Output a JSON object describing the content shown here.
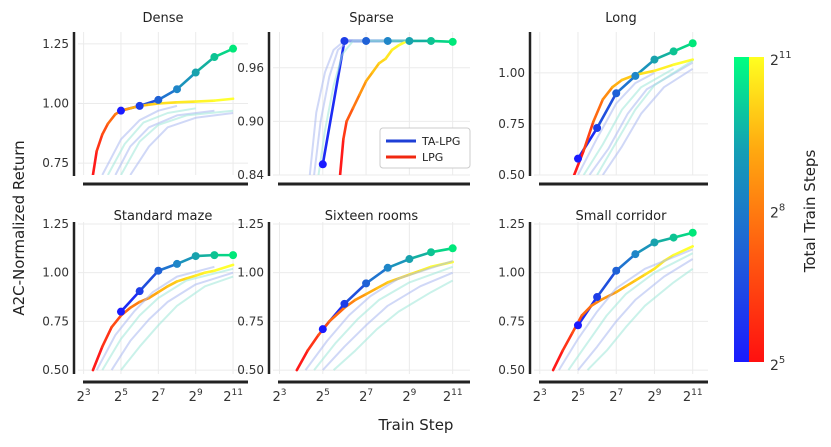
{
  "figure": {
    "ylabel": "A2C-Normalized Return",
    "xlabel": "Train Step",
    "colorbar_label": "Total Train Steps",
    "colorbar_ticks": [
      {
        "base": "2",
        "exp": "11",
        "value": 11
      },
      {
        "base": "2",
        "exp": "8",
        "value": 8
      },
      {
        "base": "2",
        "exp": "5",
        "value": 5
      }
    ],
    "colors": {
      "ta_lpg_gradient": [
        "#1a1aff",
        "#1f4fdd",
        "#1f86c8",
        "#14b0a0",
        "#00e87a"
      ],
      "lpg_gradient": [
        "#ff1a1a",
        "#ff6a10",
        "#ffae10",
        "#ffe020",
        "#ffff30"
      ],
      "ta_lpg_legend": "#1e3fd6",
      "lpg_legend": "#f02810"
    },
    "legend": [
      {
        "name": "TA-LPG",
        "color": "#1e3fd6"
      },
      {
        "name": "LPG",
        "color": "#f02810"
      }
    ]
  },
  "chart_data": [
    {
      "type": "line",
      "title": "Dense",
      "xlim": [
        2.7,
        11.8
      ],
      "ylim": [
        0.7,
        1.3
      ],
      "xticks": [],
      "yticks": [
        0.75,
        1.0,
        1.25
      ],
      "series": [
        {
          "name": "TA-LPG",
          "style": "markers",
          "x": [
            5,
            6,
            7,
            8,
            9,
            10,
            11
          ],
          "y": [
            0.97,
            0.99,
            1.015,
            1.06,
            1.13,
            1.195,
            1.23
          ]
        },
        {
          "name": "LPG",
          "style": "gradient",
          "x": [
            3.5,
            3.7,
            4.0,
            4.3,
            4.7,
            5,
            5.5,
            6,
            6.5,
            7,
            8,
            9,
            10,
            11
          ],
          "y": [
            0.7,
            0.8,
            0.87,
            0.915,
            0.955,
            0.97,
            0.98,
            0.99,
            0.995,
            1.0,
            1.005,
            1.008,
            1.012,
            1.02
          ]
        },
        {
          "name": "faint",
          "style": "faint",
          "lines": [
            {
              "x": [
                4,
                5,
                6,
                7,
                8
              ],
              "y": [
                0.7,
                0.85,
                0.93,
                0.97,
                0.99
              ]
            },
            {
              "x": [
                4.3,
                5.2,
                6.2,
                7.5,
                9
              ],
              "y": [
                0.7,
                0.83,
                0.92,
                0.96,
                0.98
              ]
            },
            {
              "x": [
                4.7,
                5.5,
                6.5,
                8,
                10
              ],
              "y": [
                0.7,
                0.82,
                0.9,
                0.95,
                0.97
              ]
            },
            {
              "x": [
                5,
                6,
                7,
                8.5,
                11
              ],
              "y": [
                0.7,
                0.84,
                0.91,
                0.95,
                0.97
              ]
            },
            {
              "x": [
                5.5,
                6.5,
                7.5,
                9,
                11
              ],
              "y": [
                0.7,
                0.82,
                0.9,
                0.94,
                0.96
              ]
            }
          ]
        }
      ]
    },
    {
      "type": "line",
      "title": "Sparse",
      "xlim": [
        2.7,
        11.8
      ],
      "ylim": [
        0.84,
        1.0
      ],
      "xticks": [],
      "yticks": [
        0.84,
        0.9,
        0.96
      ],
      "series": [
        {
          "name": "TA-LPG",
          "style": "markers",
          "x": [
            5,
            6,
            7,
            8,
            9,
            10,
            11
          ],
          "y": [
            0.852,
            0.99,
            0.99,
            0.99,
            0.99,
            0.99,
            0.989
          ]
        },
        {
          "name": "LPG",
          "style": "gradient",
          "x": [
            5.8,
            5.95,
            6.1,
            6.4,
            6.7,
            7.0,
            7.3,
            7.6,
            7.9,
            8.2,
            8.5,
            8.9
          ],
          "y": [
            0.84,
            0.88,
            0.9,
            0.915,
            0.93,
            0.945,
            0.955,
            0.965,
            0.97,
            0.98,
            0.985,
            0.99
          ]
        },
        {
          "name": "faint",
          "style": "faint",
          "lines": [
            {
              "x": [
                4.6,
                4.9,
                5.3,
                5.7,
                6.2,
                8
              ],
              "y": [
                0.84,
                0.9,
                0.95,
                0.98,
                0.99,
                0.99
              ]
            },
            {
              "x": [
                4.8,
                5.1,
                5.5,
                5.9,
                6.4,
                9
              ],
              "y": [
                0.84,
                0.89,
                0.94,
                0.975,
                0.99,
                0.99
              ]
            },
            {
              "x": [
                4.4,
                4.7,
                5.1,
                5.5,
                6.0,
                7
              ],
              "y": [
                0.84,
                0.91,
                0.955,
                0.98,
                0.99,
                0.99
              ]
            }
          ]
        }
      ]
    },
    {
      "type": "line",
      "title": "Long",
      "xlim": [
        2.7,
        11.8
      ],
      "ylim": [
        0.5,
        1.2
      ],
      "xticks": [],
      "yticks": [
        0.5,
        0.75,
        1.0
      ],
      "series": [
        {
          "name": "TA-LPG",
          "style": "markers",
          "x": [
            5,
            6,
            7,
            8,
            9,
            10,
            11
          ],
          "y": [
            0.58,
            0.73,
            0.9,
            0.985,
            1.065,
            1.105,
            1.145
          ]
        },
        {
          "name": "LPG",
          "style": "gradient",
          "x": [
            4.8,
            5.3,
            5.8,
            6.3,
            6.8,
            7.3,
            8,
            9,
            10,
            11
          ],
          "y": [
            0.5,
            0.62,
            0.76,
            0.87,
            0.93,
            0.965,
            0.99,
            1.01,
            1.04,
            1.065
          ]
        },
        {
          "name": "faint",
          "style": "faint",
          "lines": [
            {
              "x": [
                5,
                6,
                7,
                8,
                9
              ],
              "y": [
                0.5,
                0.68,
                0.85,
                0.95,
                1.0
              ]
            },
            {
              "x": [
                5.3,
                6.3,
                7.3,
                8.3,
                10
              ],
              "y": [
                0.5,
                0.65,
                0.82,
                0.93,
                1.02
              ]
            },
            {
              "x": [
                5.6,
                6.6,
                7.6,
                8.6,
                11
              ],
              "y": [
                0.5,
                0.63,
                0.8,
                0.92,
                1.05
              ]
            },
            {
              "x": [
                6,
                7,
                8,
                9,
                11
              ],
              "y": [
                0.5,
                0.66,
                0.82,
                0.94,
                1.06
              ]
            },
            {
              "x": [
                6.3,
                7.3,
                8.3,
                9.5,
                11
              ],
              "y": [
                0.5,
                0.64,
                0.8,
                0.93,
                1.02
              ]
            }
          ]
        }
      ]
    },
    {
      "type": "line",
      "title": "Standard maze",
      "xlim": [
        2.7,
        11.8
      ],
      "ylim": [
        0.48,
        1.26
      ],
      "xticks": [
        3,
        5,
        7,
        9,
        11
      ],
      "yticks": [
        0.5,
        0.75,
        1.0,
        1.25
      ],
      "series": [
        {
          "name": "TA-LPG",
          "style": "markers",
          "x": [
            5,
            6,
            7,
            8,
            9,
            10,
            11
          ],
          "y": [
            0.8,
            0.905,
            1.01,
            1.045,
            1.085,
            1.09,
            1.09
          ]
        },
        {
          "name": "LPG",
          "style": "gradient",
          "x": [
            3.5,
            4.0,
            4.5,
            5,
            5.5,
            6,
            6.5,
            7,
            7.5,
            8,
            8.5,
            9,
            9.5,
            10,
            11
          ],
          "y": [
            0.5,
            0.62,
            0.72,
            0.78,
            0.82,
            0.85,
            0.87,
            0.9,
            0.93,
            0.955,
            0.97,
            0.985,
            1.0,
            1.01,
            1.04
          ]
        },
        {
          "name": "faint",
          "style": "faint",
          "lines": [
            {
              "x": [
                3.7,
                4.7,
                5.7,
                6.7,
                8,
                10
              ],
              "y": [
                0.5,
                0.68,
                0.8,
                0.9,
                0.98,
                1.03
              ]
            },
            {
              "x": [
                4,
                5,
                6,
                7,
                8.5,
                11
              ],
              "y": [
                0.5,
                0.66,
                0.78,
                0.87,
                0.96,
                1.02
              ]
            },
            {
              "x": [
                4.5,
                5.5,
                6.5,
                7.5,
                9,
                11
              ],
              "y": [
                0.5,
                0.65,
                0.76,
                0.85,
                0.94,
                1.0
              ]
            },
            {
              "x": [
                5,
                6,
                7,
                8,
                9.5,
                11
              ],
              "y": [
                0.5,
                0.62,
                0.73,
                0.83,
                0.93,
                0.98
              ]
            }
          ]
        }
      ]
    },
    {
      "type": "line",
      "title": "Sixteen rooms",
      "xlim": [
        2.7,
        11.8
      ],
      "ylim": [
        0.48,
        1.26
      ],
      "xticks": [
        3,
        5,
        7,
        9,
        11
      ],
      "yticks": [
        0.5,
        0.75,
        1.0,
        1.25
      ],
      "series": [
        {
          "name": "TA-LPG",
          "style": "markers",
          "x": [
            5,
            6,
            7,
            8,
            9,
            10,
            11
          ],
          "y": [
            0.71,
            0.84,
            0.945,
            1.025,
            1.07,
            1.105,
            1.125
          ]
        },
        {
          "name": "LPG",
          "style": "gradient",
          "x": [
            3.8,
            4.3,
            4.8,
            5.3,
            6,
            6.5,
            7,
            7.5,
            8,
            8.5,
            9,
            9.5,
            10,
            11
          ],
          "y": [
            0.5,
            0.6,
            0.68,
            0.75,
            0.82,
            0.86,
            0.89,
            0.92,
            0.95,
            0.97,
            0.99,
            1.01,
            1.03,
            1.055
          ]
        },
        {
          "name": "faint",
          "style": "faint",
          "lines": [
            {
              "x": [
                4.2,
                5.2,
                6.2,
                7.2,
                8.5,
                11
              ],
              "y": [
                0.5,
                0.65,
                0.78,
                0.88,
                0.97,
                1.06
              ]
            },
            {
              "x": [
                4.6,
                5.6,
                6.6,
                7.6,
                9,
                11
              ],
              "y": [
                0.5,
                0.64,
                0.76,
                0.86,
                0.95,
                1.03
              ]
            },
            {
              "x": [
                5,
                6,
                7,
                8,
                9.5,
                11
              ],
              "y": [
                0.5,
                0.62,
                0.73,
                0.83,
                0.93,
                1.0
              ]
            },
            {
              "x": [
                5.5,
                6.5,
                7.5,
                8.5,
                10,
                11
              ],
              "y": [
                0.5,
                0.6,
                0.71,
                0.8,
                0.9,
                0.96
              ]
            }
          ]
        }
      ]
    },
    {
      "type": "line",
      "title": "Small corridor",
      "xlim": [
        2.7,
        11.8
      ],
      "ylim": [
        0.48,
        1.26
      ],
      "xticks": [
        3,
        5,
        7,
        9,
        11
      ],
      "yticks": [
        0.5,
        0.75,
        1.0,
        1.25
      ],
      "series": [
        {
          "name": "TA-LPG",
          "style": "markers",
          "x": [
            5,
            6,
            7,
            8,
            9,
            10,
            11
          ],
          "y": [
            0.73,
            0.875,
            1.01,
            1.095,
            1.155,
            1.18,
            1.205
          ]
        },
        {
          "name": "LPG",
          "style": "gradient",
          "x": [
            3.7,
            4.2,
            4.7,
            5.2,
            5.7,
            6.2,
            7,
            7.5,
            8,
            8.5,
            9,
            9.5,
            10,
            11
          ],
          "y": [
            0.5,
            0.6,
            0.69,
            0.78,
            0.83,
            0.86,
            0.9,
            0.93,
            0.96,
            0.99,
            1.02,
            1.06,
            1.09,
            1.135
          ]
        },
        {
          "name": "faint",
          "style": "faint",
          "lines": [
            {
              "x": [
                4,
                5,
                6,
                7,
                8.5,
                11
              ],
              "y": [
                0.5,
                0.66,
                0.8,
                0.92,
                1.02,
                1.12
              ]
            },
            {
              "x": [
                4.5,
                5.5,
                6.5,
                7.5,
                9,
                11
              ],
              "y": [
                0.5,
                0.64,
                0.78,
                0.89,
                1.0,
                1.1
              ]
            },
            {
              "x": [
                5,
                6,
                7,
                8,
                9.5,
                11
              ],
              "y": [
                0.5,
                0.62,
                0.75,
                0.86,
                0.98,
                1.07
              ]
            },
            {
              "x": [
                5.5,
                6.5,
                7.5,
                8.5,
                10,
                11
              ],
              "y": [
                0.5,
                0.6,
                0.72,
                0.83,
                0.95,
                1.02
              ]
            }
          ]
        }
      ]
    }
  ]
}
